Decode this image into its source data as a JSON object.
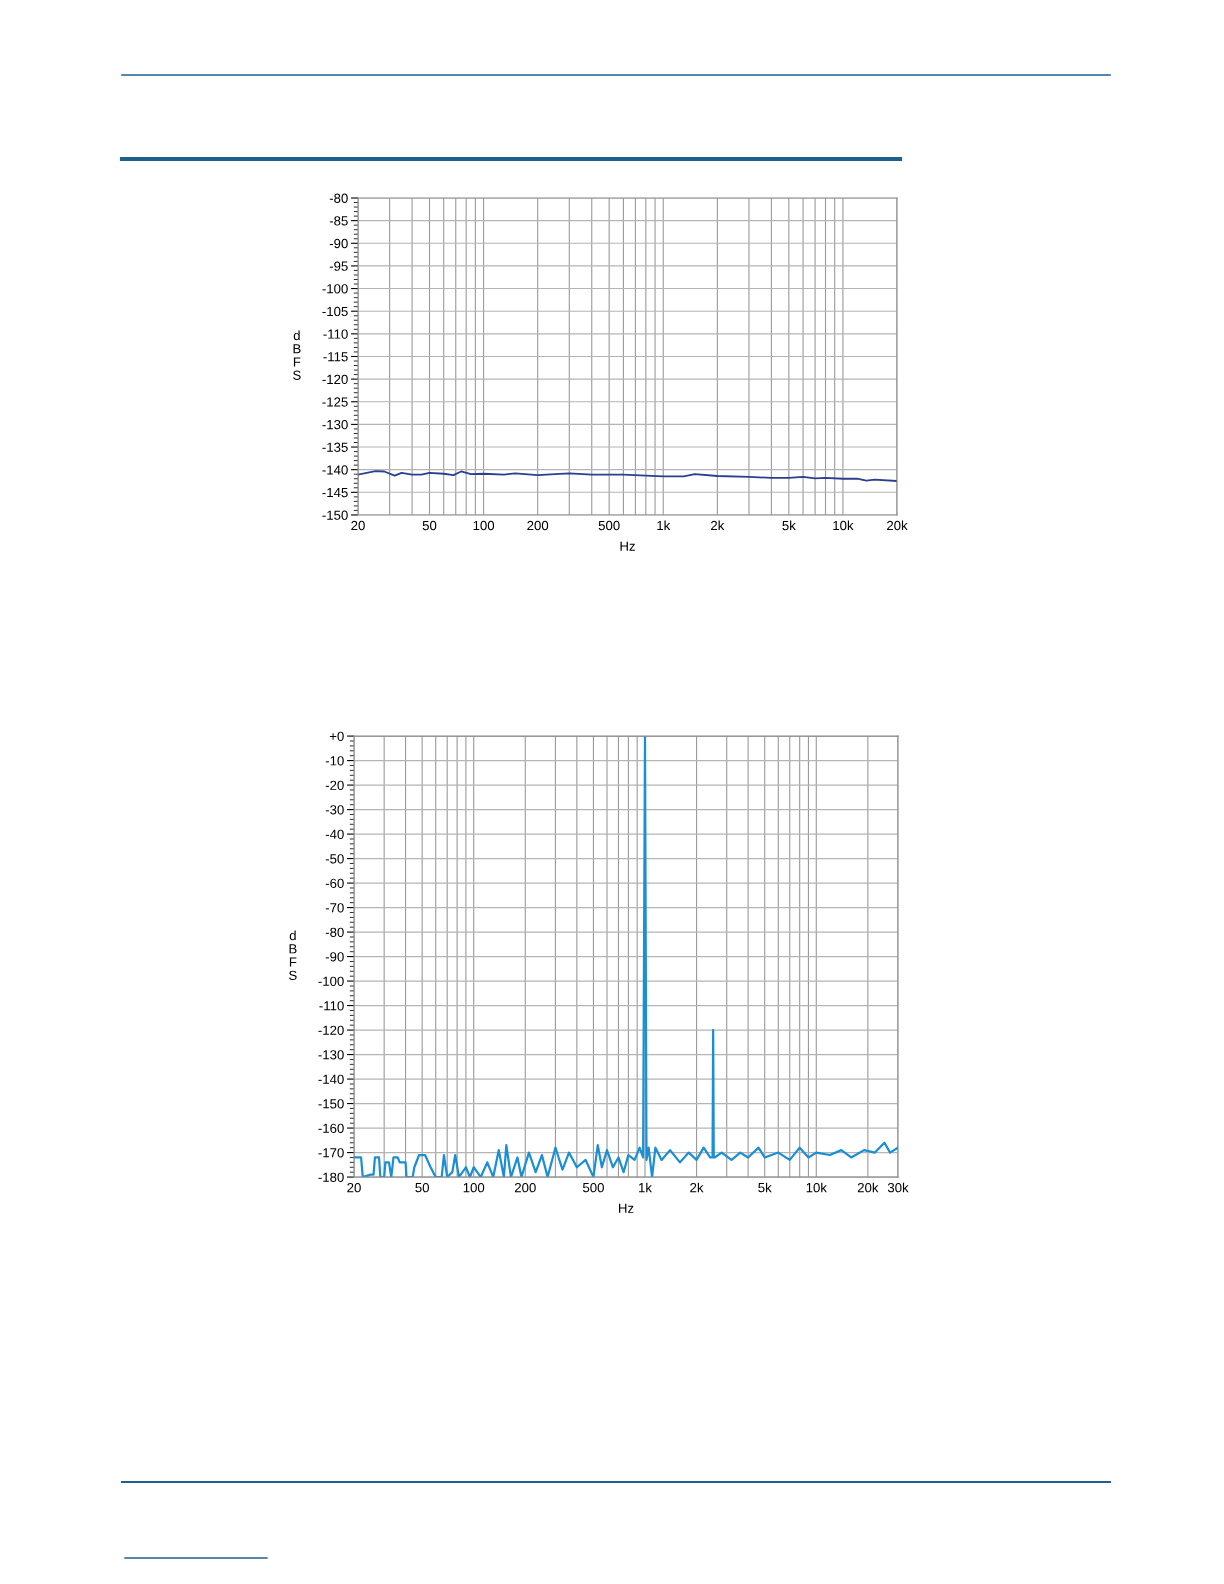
{
  "chart_data": [
    {
      "type": "line",
      "xlabel": "Hz",
      "ylabel": "dBFS",
      "log": "x",
      "grid": true,
      "marker": "none",
      "line_style": "solid",
      "xlim": [
        20,
        20000
      ],
      "xticks": [
        20,
        50,
        100,
        200,
        500,
        {
          "value": 1000,
          "label": "1k"
        },
        {
          "value": 2000,
          "label": "2k"
        },
        {
          "value": 5000,
          "label": "5k"
        },
        {
          "value": 10000,
          "label": "10k"
        },
        {
          "value": 20000,
          "label": "20k"
        }
      ],
      "ylim": [
        -150,
        -80
      ],
      "yticks": [
        -150,
        -145,
        -140,
        -135,
        -130,
        -125,
        -120,
        -115,
        -110,
        -105,
        -100,
        -95,
        -90,
        -85,
        -80
      ],
      "series": [
        {
          "color": "#2b3f8f",
          "x": [
            20,
            25,
            28,
            32,
            35,
            40,
            45,
            50,
            60,
            68,
            75,
            85,
            100,
            130,
            150,
            200,
            250,
            300,
            400,
            600,
            800,
            1000,
            1300,
            1500,
            2000,
            3000,
            4000,
            5000,
            6000,
            7000,
            8000,
            10000,
            12000,
            13500,
            15000,
            20000
          ],
          "values": [
            -141.1,
            -140.3,
            -140.4,
            -141.3,
            -140.7,
            -141.1,
            -141.1,
            -140.7,
            -140.9,
            -141.2,
            -140.4,
            -141.0,
            -140.9,
            -141.1,
            -140.8,
            -141.2,
            -141.0,
            -140.8,
            -141.1,
            -141.1,
            -141.3,
            -141.5,
            -141.5,
            -141.0,
            -141.4,
            -141.6,
            -141.8,
            -141.8,
            -141.6,
            -141.9,
            -141.8,
            -142.0,
            -142.0,
            -142.4,
            -142.2,
            -142.5
          ]
        }
      ]
    },
    {
      "type": "line",
      "xlabel": "Hz",
      "ylabel": "dBFS",
      "log": "x",
      "grid": true,
      "marker": "none",
      "line_style": "solid",
      "xlim": [
        20,
        30000
      ],
      "xticks": [
        20,
        50,
        100,
        200,
        500,
        {
          "value": 1000,
          "label": "1k"
        },
        {
          "value": 2000,
          "label": "2k"
        },
        {
          "value": 5000,
          "label": "5k"
        },
        {
          "value": 10000,
          "label": "10k"
        },
        {
          "value": 20000,
          "label": "20k"
        },
        {
          "value": 30000,
          "label": "30k"
        }
      ],
      "ylim": [
        -180,
        0
      ],
      "yticks": [
        -180,
        -170,
        -160,
        -150,
        -140,
        -130,
        -120,
        -110,
        -100,
        -90,
        -80,
        -70,
        -60,
        -50,
        -40,
        -30,
        -20,
        -10,
        {
          "value": 0,
          "label": "+0"
        }
      ],
      "series": [
        {
          "color": "#1a8fd4",
          "x": [
            20,
            22,
            22.5,
            25,
            26,
            26.5,
            28,
            28.5,
            30,
            30.5,
            32,
            33,
            34,
            36,
            37,
            40,
            40.5,
            44,
            45,
            48,
            52,
            56,
            60,
            65,
            67,
            70,
            75,
            78,
            82,
            90,
            95,
            100,
            110,
            120,
            130,
            140,
            150,
            155,
            165,
            180,
            190,
            210,
            230,
            250,
            270,
            300,
            330,
            360,
            400,
            450,
            500,
            530,
            560,
            600,
            650,
            700,
            750,
            800,
            870,
            930,
            975,
            1000,
            1020,
            1050,
            1100,
            1150,
            1250,
            1400,
            1600,
            1800,
            2000,
            2200,
            2400,
            2480,
            2500,
            2520,
            2550,
            2800,
            3200,
            3600,
            4000,
            4600,
            5000,
            6000,
            7000,
            8000,
            9000,
            10000,
            12000,
            14000,
            16000,
            19000,
            22000,
            25000,
            27000,
            30000
          ],
          "values": [
            -172,
            -172,
            -180,
            -179,
            -179,
            -172,
            -172,
            -180,
            -180,
            -174,
            -174,
            -180,
            -172,
            -172,
            -174,
            -174,
            -180,
            -180,
            -176,
            -171,
            -171,
            -176,
            -180,
            -180,
            -171,
            -180,
            -178,
            -171,
            -180,
            -176,
            -180,
            -176,
            -180,
            -174,
            -180,
            -169,
            -180,
            -167,
            -180,
            -172,
            -180,
            -170,
            -178,
            -171,
            -180,
            -168,
            -177,
            -170,
            -176,
            -173,
            -180,
            -167,
            -176,
            -169,
            -176,
            -172,
            -178,
            -171,
            -173,
            -168,
            -172,
            0,
            -173,
            -168,
            -180,
            -168,
            -173,
            -169,
            -174,
            -170,
            -173,
            -168,
            -172,
            -172,
            -120,
            -172,
            -172,
            -170,
            -173,
            -170,
            -172,
            -168,
            -172,
            -170,
            -173,
            -168,
            -172,
            -170,
            -171,
            -169,
            -172,
            -169,
            -170,
            -166,
            -170,
            -168
          ]
        }
      ]
    }
  ]
}
